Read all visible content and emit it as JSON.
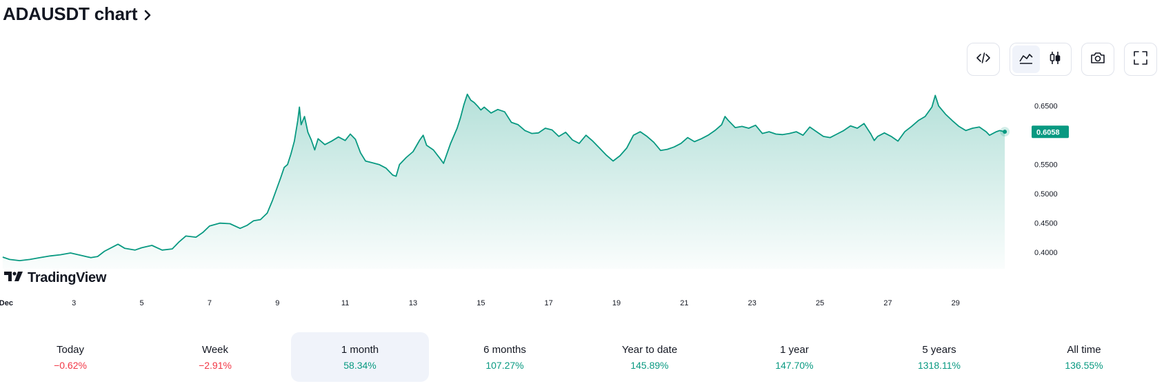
{
  "title": {
    "text": "ADAUSDT chart",
    "chevron_icon": "chevron-right-icon"
  },
  "toolbar": {
    "embed_icon": "code-icon",
    "area_icon": "area-chart-icon",
    "candles_icon": "candlestick-icon",
    "snapshot_icon": "camera-icon",
    "fullscreen_icon": "fullscreen-icon",
    "active_style": "area"
  },
  "brand": {
    "text": "TradingView"
  },
  "colors": {
    "line": "#089981",
    "fill": "#089981",
    "negative": "#f23645",
    "positive": "#089981",
    "price_tag_bg": "#089981",
    "price_tag_text": "#ffffff"
  },
  "chart_data": {
    "type": "area",
    "ylim": [
      0.372,
      0.692
    ],
    "y_ticks": [
      "0.6500",
      "0.5500",
      "0.5000",
      "0.4500",
      "0.4000"
    ],
    "y_tick_values": [
      0.65,
      0.55,
      0.5,
      0.45,
      0.4
    ],
    "x_domain": [
      0.82,
      31.2
    ],
    "x_ticks": [
      {
        "x": 1,
        "label": "Dec"
      },
      {
        "x": 3,
        "label": "3"
      },
      {
        "x": 5,
        "label": "5"
      },
      {
        "x": 7,
        "label": "7"
      },
      {
        "x": 9,
        "label": "9"
      },
      {
        "x": 11,
        "label": "11"
      },
      {
        "x": 13,
        "label": "13"
      },
      {
        "x": 15,
        "label": "15"
      },
      {
        "x": 17,
        "label": "17"
      },
      {
        "x": 19,
        "label": "19"
      },
      {
        "x": 21,
        "label": "21"
      },
      {
        "x": 23,
        "label": "23"
      },
      {
        "x": 25,
        "label": "25"
      },
      {
        "x": 27,
        "label": "27"
      },
      {
        "x": 29,
        "label": "29"
      }
    ],
    "last_price": {
      "label": "0.6058",
      "value": 0.6058
    },
    "points": [
      [
        0.9,
        0.392
      ],
      [
        1.1,
        0.388
      ],
      [
        1.4,
        0.386
      ],
      [
        1.7,
        0.388
      ],
      [
        2.0,
        0.391
      ],
      [
        2.3,
        0.394
      ],
      [
        2.6,
        0.396
      ],
      [
        2.9,
        0.399
      ],
      [
        3.2,
        0.395
      ],
      [
        3.5,
        0.391
      ],
      [
        3.7,
        0.393
      ],
      [
        3.9,
        0.402
      ],
      [
        4.1,
        0.408
      ],
      [
        4.3,
        0.414
      ],
      [
        4.5,
        0.407
      ],
      [
        4.8,
        0.404
      ],
      [
        5.0,
        0.408
      ],
      [
        5.3,
        0.412
      ],
      [
        5.6,
        0.404
      ],
      [
        5.9,
        0.406
      ],
      [
        6.1,
        0.418
      ],
      [
        6.3,
        0.428
      ],
      [
        6.6,
        0.426
      ],
      [
        6.8,
        0.434
      ],
      [
        7.0,
        0.445
      ],
      [
        7.3,
        0.45
      ],
      [
        7.6,
        0.449
      ],
      [
        7.9,
        0.441
      ],
      [
        8.1,
        0.446
      ],
      [
        8.3,
        0.454
      ],
      [
        8.5,
        0.456
      ],
      [
        8.7,
        0.467
      ],
      [
        8.85,
        0.488
      ],
      [
        9.0,
        0.512
      ],
      [
        9.1,
        0.528
      ],
      [
        9.2,
        0.545
      ],
      [
        9.3,
        0.55
      ],
      [
        9.4,
        0.568
      ],
      [
        9.5,
        0.59
      ],
      [
        9.6,
        0.625
      ],
      [
        9.65,
        0.648
      ],
      [
        9.7,
        0.618
      ],
      [
        9.8,
        0.632
      ],
      [
        9.9,
        0.605
      ],
      [
        10.0,
        0.592
      ],
      [
        10.1,
        0.575
      ],
      [
        10.2,
        0.594
      ],
      [
        10.4,
        0.584
      ],
      [
        10.6,
        0.59
      ],
      [
        10.8,
        0.597
      ],
      [
        11.0,
        0.591
      ],
      [
        11.15,
        0.602
      ],
      [
        11.3,
        0.593
      ],
      [
        11.45,
        0.57
      ],
      [
        11.6,
        0.556
      ],
      [
        11.8,
        0.553
      ],
      [
        12.0,
        0.55
      ],
      [
        12.2,
        0.544
      ],
      [
        12.4,
        0.532
      ],
      [
        12.5,
        0.53
      ],
      [
        12.6,
        0.55
      ],
      [
        12.8,
        0.562
      ],
      [
        13.0,
        0.572
      ],
      [
        13.2,
        0.592
      ],
      [
        13.3,
        0.6
      ],
      [
        13.4,
        0.583
      ],
      [
        13.6,
        0.575
      ],
      [
        13.8,
        0.56
      ],
      [
        13.9,
        0.552
      ],
      [
        14.1,
        0.585
      ],
      [
        14.3,
        0.612
      ],
      [
        14.4,
        0.63
      ],
      [
        14.5,
        0.652
      ],
      [
        14.6,
        0.67
      ],
      [
        14.7,
        0.66
      ],
      [
        14.8,
        0.656
      ],
      [
        14.9,
        0.65
      ],
      [
        15.0,
        0.643
      ],
      [
        15.1,
        0.648
      ],
      [
        15.3,
        0.638
      ],
      [
        15.5,
        0.644
      ],
      [
        15.7,
        0.64
      ],
      [
        15.9,
        0.622
      ],
      [
        16.1,
        0.618
      ],
      [
        16.3,
        0.608
      ],
      [
        16.5,
        0.603
      ],
      [
        16.7,
        0.604
      ],
      [
        16.9,
        0.612
      ],
      [
        17.1,
        0.609
      ],
      [
        17.3,
        0.598
      ],
      [
        17.5,
        0.605
      ],
      [
        17.7,
        0.592
      ],
      [
        17.9,
        0.586
      ],
      [
        18.1,
        0.6
      ],
      [
        18.3,
        0.59
      ],
      [
        18.5,
        0.578
      ],
      [
        18.7,
        0.566
      ],
      [
        18.9,
        0.556
      ],
      [
        19.1,
        0.565
      ],
      [
        19.3,
        0.578
      ],
      [
        19.5,
        0.6
      ],
      [
        19.7,
        0.606
      ],
      [
        19.9,
        0.598
      ],
      [
        20.1,
        0.588
      ],
      [
        20.3,
        0.574
      ],
      [
        20.5,
        0.576
      ],
      [
        20.7,
        0.58
      ],
      [
        20.9,
        0.586
      ],
      [
        21.1,
        0.596
      ],
      [
        21.3,
        0.589
      ],
      [
        21.5,
        0.594
      ],
      [
        21.7,
        0.6
      ],
      [
        21.9,
        0.608
      ],
      [
        22.1,
        0.618
      ],
      [
        22.2,
        0.632
      ],
      [
        22.3,
        0.625
      ],
      [
        22.5,
        0.613
      ],
      [
        22.7,
        0.615
      ],
      [
        22.9,
        0.612
      ],
      [
        23.1,
        0.617
      ],
      [
        23.3,
        0.603
      ],
      [
        23.5,
        0.606
      ],
      [
        23.7,
        0.602
      ],
      [
        23.9,
        0.601
      ],
      [
        24.1,
        0.603
      ],
      [
        24.3,
        0.606
      ],
      [
        24.5,
        0.6
      ],
      [
        24.7,
        0.614
      ],
      [
        24.9,
        0.606
      ],
      [
        25.1,
        0.598
      ],
      [
        25.3,
        0.596
      ],
      [
        25.5,
        0.602
      ],
      [
        25.7,
        0.608
      ],
      [
        25.9,
        0.616
      ],
      [
        26.1,
        0.612
      ],
      [
        26.3,
        0.62
      ],
      [
        26.5,
        0.602
      ],
      [
        26.6,
        0.591
      ],
      [
        26.7,
        0.598
      ],
      [
        26.9,
        0.604
      ],
      [
        27.1,
        0.598
      ],
      [
        27.3,
        0.59
      ],
      [
        27.5,
        0.606
      ],
      [
        27.7,
        0.615
      ],
      [
        27.9,
        0.625
      ],
      [
        28.1,
        0.632
      ],
      [
        28.3,
        0.648
      ],
      [
        28.4,
        0.668
      ],
      [
        28.5,
        0.65
      ],
      [
        28.6,
        0.643
      ],
      [
        28.7,
        0.636
      ],
      [
        28.9,
        0.625
      ],
      [
        29.1,
        0.615
      ],
      [
        29.3,
        0.608
      ],
      [
        29.5,
        0.612
      ],
      [
        29.7,
        0.614
      ],
      [
        29.9,
        0.606
      ],
      [
        30.0,
        0.6
      ],
      [
        30.2,
        0.606
      ],
      [
        30.3,
        0.608
      ],
      [
        30.45,
        0.606
      ]
    ]
  },
  "periods": [
    {
      "label": "Today",
      "value": "−0.62%",
      "sign": "neg"
    },
    {
      "label": "Week",
      "value": "−2.91%",
      "sign": "neg"
    },
    {
      "label": "1 month",
      "value": "58.34%",
      "sign": "pos",
      "active": true
    },
    {
      "label": "6 months",
      "value": "107.27%",
      "sign": "pos"
    },
    {
      "label": "Year to date",
      "value": "145.89%",
      "sign": "pos"
    },
    {
      "label": "1 year",
      "value": "147.70%",
      "sign": "pos"
    },
    {
      "label": "5 years",
      "value": "1318.11%",
      "sign": "pos"
    },
    {
      "label": "All time",
      "value": "136.55%",
      "sign": "pos"
    }
  ]
}
